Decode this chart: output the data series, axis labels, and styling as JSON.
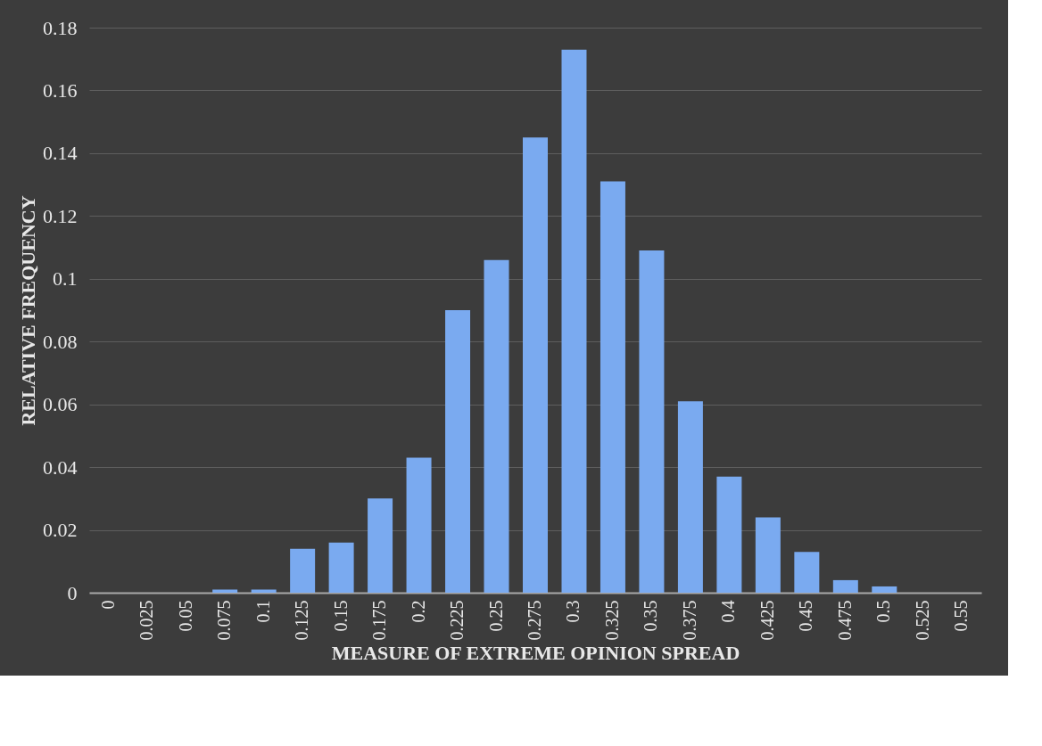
{
  "chart_data": {
    "type": "bar",
    "xlabel": "MEASURE OF EXTREME OPINION SPREAD",
    "ylabel": "RELATIVE FREQUENCY",
    "categories": [
      "0",
      "0.025",
      "0.05",
      "0.075",
      "0.1",
      "0.125",
      "0.15",
      "0.175",
      "0.2",
      "0.225",
      "0.25",
      "0.275",
      "0.3",
      "0.325",
      "0.35",
      "0.375",
      "0.4",
      "0.425",
      "0.45",
      "0.475",
      "0.5",
      "0.525",
      "0.55"
    ],
    "values": [
      0,
      0,
      0,
      0.001,
      0.001,
      0.014,
      0.016,
      0.03,
      0.043,
      0.09,
      0.106,
      0.145,
      0.173,
      0.131,
      0.109,
      0.061,
      0.037,
      0.024,
      0.013,
      0.004,
      0.002,
      0,
      0
    ],
    "color": "#7aaaf0",
    "ylim": [
      0,
      0.18
    ],
    "yticks": [
      0,
      0.02,
      0.04,
      0.06,
      0.08,
      0.1,
      0.12,
      0.14,
      0.16,
      0.18
    ],
    "grid": "y"
  }
}
